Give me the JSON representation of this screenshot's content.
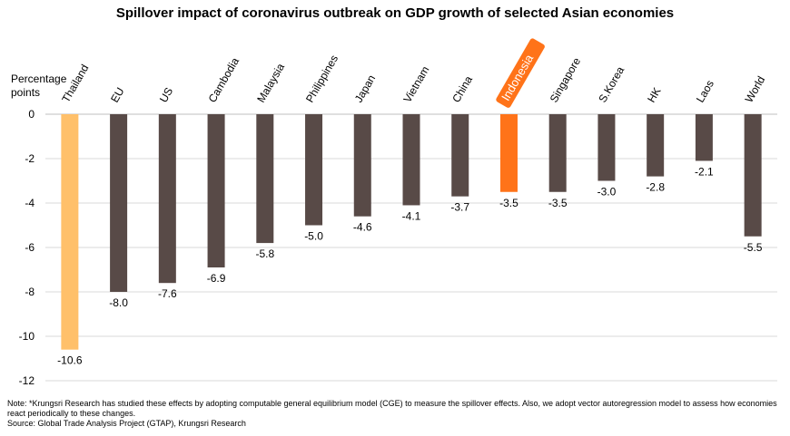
{
  "chart_data": {
    "type": "bar",
    "title": "Spillover impact of coronavirus outbreak on GDP growth of selected Asian economies",
    "ylabel": "Percentage points",
    "xlabel": "",
    "ylim": [
      -12,
      0
    ],
    "yticks": [
      0,
      -2,
      -4,
      -6,
      -8,
      -10,
      -12
    ],
    "grid": true,
    "categories": [
      "Thailand",
      "EU",
      "US",
      "Cambodia",
      "Malaysia",
      "Philippines",
      "Japan",
      "Vietnam",
      "China",
      "Indonesia",
      "Singapore",
      "S.Korea",
      "HK",
      "Laos",
      "World"
    ],
    "values": [
      -10.6,
      -8.0,
      -7.6,
      -6.9,
      -5.8,
      -5.0,
      -4.6,
      -4.1,
      -3.7,
      -3.5,
      -3.5,
      -3.0,
      -2.8,
      -2.1,
      -5.5
    ],
    "value_labels": [
      "-10.6",
      "-8.0",
      "-7.6",
      "-6.9",
      "-5.8",
      "-5.0",
      "-4.6",
      "-4.1",
      "-3.7",
      "-3.5",
      "-3.5",
      "-3.0",
      "-2.8",
      "-2.1",
      "-5.5"
    ],
    "highlights": {
      "Thailand": "#FFC06A",
      "Indonesia": "#FF7319"
    },
    "colors": {
      "default_bar": "#584A47",
      "grid": "#D9D9D9"
    }
  },
  "footnote": {
    "note": "Note: *Krungsri Research has studied these effects by adopting computable general equilibrium model (CGE) to measure the spillover effects. Also, we adopt vector autoregression model to assess how economies react periodically to these changes.",
    "source": "Source: Global Trade Analysis Project (GTAP), Krungsri Research"
  }
}
